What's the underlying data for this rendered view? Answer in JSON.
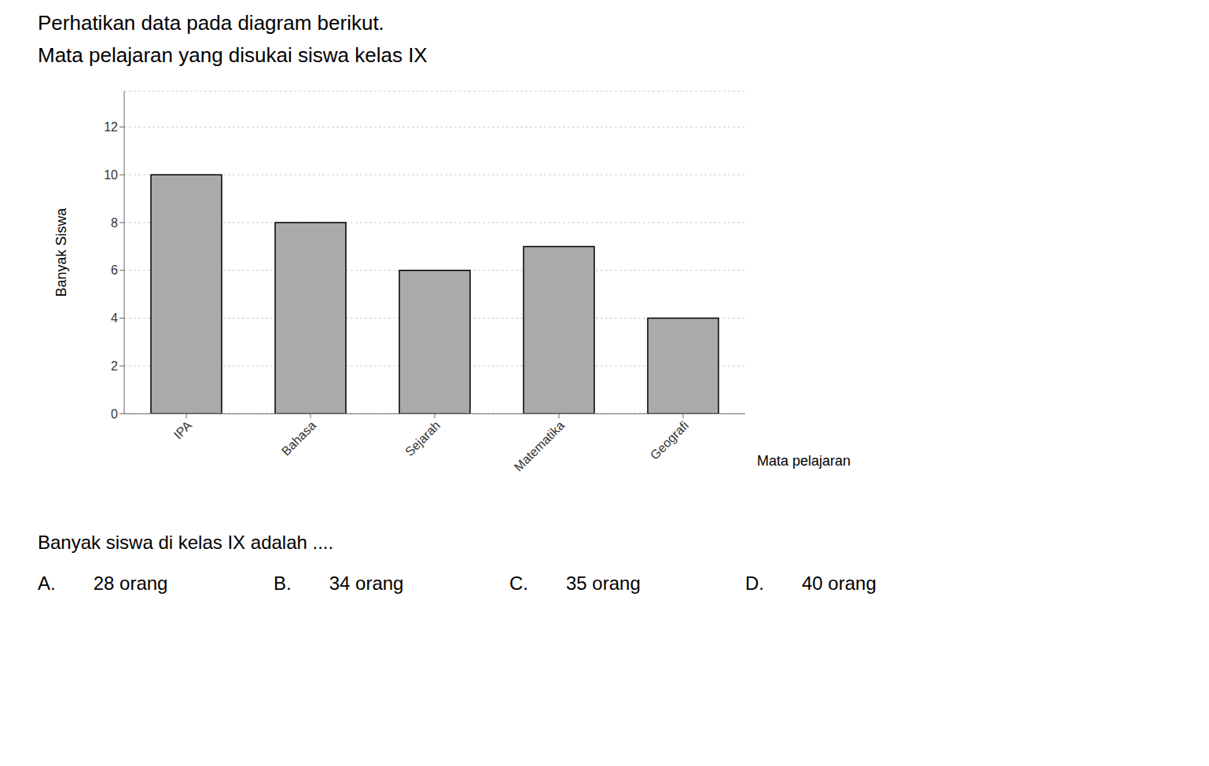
{
  "chart_data": {
    "type": "bar",
    "title": "Perhatikan data pada diagram berikut.",
    "subtitle": "Mata pelajaran yang disukai siswa kelas IX",
    "categories": [
      "IPA",
      "Bahasa",
      "Sejarah",
      "Matematika",
      "Geografi"
    ],
    "values": [
      10,
      8,
      6,
      7,
      4
    ],
    "color": "#aaaaaa",
    "x_label": "Mata pelajaran",
    "y_label": "Banyak Siswa",
    "ylim": [
      0,
      13.5
    ],
    "yticks": [
      0,
      2,
      4,
      6,
      8,
      10,
      12
    ],
    "grid": true,
    "annotations": [
      "Banyak siswa di kelas IX adalah ....",
      "A.  28 orang",
      "B.  34 orang",
      "C.  35 orang",
      "D.  40 orang"
    ]
  }
}
